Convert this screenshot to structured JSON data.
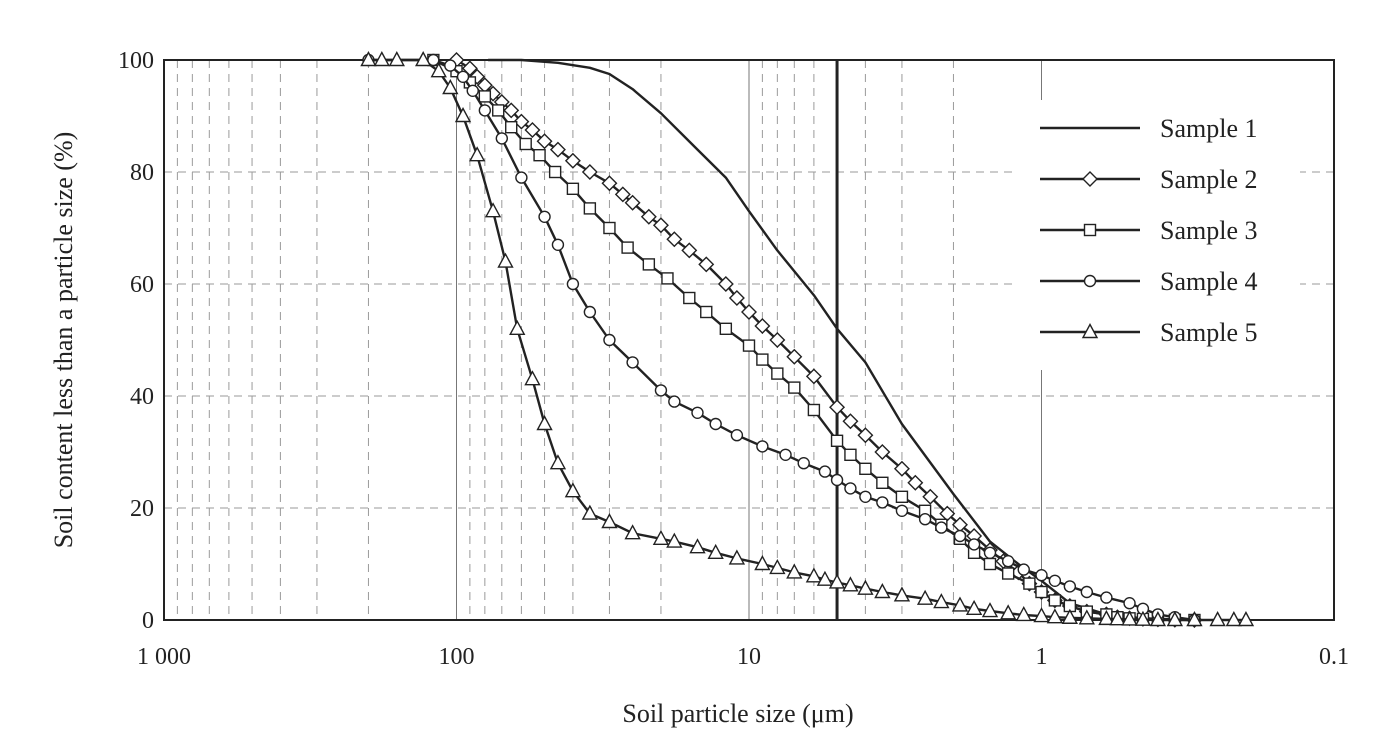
{
  "chart_data": {
    "type": "line",
    "title": "",
    "xlabel": "Soil particle size (μm)",
    "ylabel": "Soil content less than a particle size (%)",
    "x_scale": "log",
    "x_reversed": true,
    "xlim": [
      1000,
      0.1
    ],
    "ylim": [
      0,
      100
    ],
    "x_ticks": [
      {
        "value": 1000,
        "label": "1 000"
      },
      {
        "value": 100,
        "label": "100"
      },
      {
        "value": 10,
        "label": "10"
      },
      {
        "value": 1,
        "label": "1"
      },
      {
        "value": 0.1,
        "label": "0.1"
      }
    ],
    "y_ticks": [
      {
        "value": 0,
        "label": "0"
      },
      {
        "value": 20,
        "label": "20"
      },
      {
        "value": 40,
        "label": "40"
      },
      {
        "value": 60,
        "label": "60"
      },
      {
        "value": 80,
        "label": "80"
      },
      {
        "value": 100,
        "label": "100"
      }
    ],
    "grid": true,
    "legend_position": "top-right",
    "reference_line_x": 5,
    "series": [
      {
        "name": "Sample 1",
        "marker": "none",
        "points": [
          [
            78,
            100
          ],
          [
            60,
            100
          ],
          [
            45,
            99.5
          ],
          [
            35,
            98.6
          ],
          [
            30,
            97.5
          ],
          [
            25,
            94.8
          ],
          [
            20,
            90.5
          ],
          [
            15,
            84
          ],
          [
            12,
            79
          ],
          [
            10,
            73
          ],
          [
            8,
            66
          ],
          [
            6,
            58
          ],
          [
            5,
            52
          ],
          [
            4,
            46
          ],
          [
            3,
            35
          ],
          [
            2,
            22.5
          ],
          [
            1.5,
            14
          ],
          [
            1.2,
            10
          ],
          [
            1,
            7
          ],
          [
            0.8,
            3
          ],
          [
            0.6,
            1
          ],
          [
            0.45,
            0.3
          ],
          [
            0.3,
            0
          ]
        ]
      },
      {
        "name": "Sample 2",
        "marker": "diamond",
        "points": [
          [
            100,
            100
          ],
          [
            90,
            98.5
          ],
          [
            85,
            97
          ],
          [
            80,
            95.5
          ],
          [
            75,
            94
          ],
          [
            70,
            92.5
          ],
          [
            65,
            91
          ],
          [
            60,
            89
          ],
          [
            55,
            87.5
          ],
          [
            50,
            85.5
          ],
          [
            45,
            84
          ],
          [
            40,
            82
          ],
          [
            35,
            80
          ],
          [
            30,
            78
          ],
          [
            27,
            76
          ],
          [
            25,
            74.5
          ],
          [
            22,
            72
          ],
          [
            20,
            70.5
          ],
          [
            18,
            68
          ],
          [
            16,
            66
          ],
          [
            14,
            63.5
          ],
          [
            12,
            60
          ],
          [
            11,
            57.5
          ],
          [
            10,
            55
          ],
          [
            9,
            52.5
          ],
          [
            8,
            50
          ],
          [
            7,
            47
          ],
          [
            6,
            43.5
          ],
          [
            5,
            38
          ],
          [
            4.5,
            35.5
          ],
          [
            4,
            33
          ],
          [
            3.5,
            30
          ],
          [
            3,
            27
          ],
          [
            2.7,
            24.5
          ],
          [
            2.4,
            22
          ],
          [
            2.1,
            19
          ],
          [
            1.9,
            17
          ],
          [
            1.7,
            15
          ],
          [
            1.5,
            12.5
          ],
          [
            1.35,
            10.5
          ],
          [
            1.2,
            8.5
          ],
          [
            1.1,
            6.5
          ],
          [
            1,
            5
          ],
          [
            0.9,
            3.5
          ],
          [
            0.8,
            2.5
          ],
          [
            0.7,
            1.5
          ],
          [
            0.6,
            1
          ],
          [
            0.55,
            0.5
          ],
          [
            0.5,
            0.3
          ],
          [
            0.45,
            0.2
          ],
          [
            0.4,
            0.1
          ],
          [
            0.35,
            0.05
          ],
          [
            0.3,
            0
          ]
        ]
      },
      {
        "name": "Sample 3",
        "marker": "square",
        "points": [
          [
            120,
            100
          ],
          [
            100,
            98
          ],
          [
            90,
            96
          ],
          [
            80,
            93.5
          ],
          [
            72,
            91
          ],
          [
            65,
            88
          ],
          [
            58,
            85
          ],
          [
            52,
            83
          ],
          [
            46,
            80
          ],
          [
            40,
            77
          ],
          [
            35,
            73.5
          ],
          [
            30,
            70
          ],
          [
            26,
            66.5
          ],
          [
            22,
            63.5
          ],
          [
            19,
            61
          ],
          [
            16,
            57.5
          ],
          [
            14,
            55
          ],
          [
            12,
            52
          ],
          [
            10,
            49
          ],
          [
            9,
            46.5
          ],
          [
            8,
            44
          ],
          [
            7,
            41.5
          ],
          [
            6,
            37.5
          ],
          [
            5,
            32
          ],
          [
            4.5,
            29.5
          ],
          [
            4,
            27
          ],
          [
            3.5,
            24.5
          ],
          [
            3,
            22
          ],
          [
            2.5,
            19.5
          ],
          [
            2.2,
            17
          ],
          [
            1.9,
            14.5
          ],
          [
            1.7,
            12
          ],
          [
            1.5,
            10
          ],
          [
            1.3,
            8.3
          ],
          [
            1.1,
            6.5
          ],
          [
            1,
            5
          ],
          [
            0.9,
            3.5
          ],
          [
            0.8,
            2.5
          ],
          [
            0.7,
            1.5
          ],
          [
            0.6,
            1
          ],
          [
            0.55,
            0.5
          ],
          [
            0.5,
            0.3
          ],
          [
            0.45,
            0.2
          ],
          [
            0.4,
            0.1
          ],
          [
            0.35,
            0.05
          ],
          [
            0.3,
            0
          ]
        ]
      },
      {
        "name": "Sample 4",
        "marker": "circle",
        "points": [
          [
            200,
            100
          ],
          [
            120,
            100
          ],
          [
            105,
            99
          ],
          [
            95,
            97
          ],
          [
            88,
            94.5
          ],
          [
            80,
            91
          ],
          [
            70,
            86
          ],
          [
            60,
            79
          ],
          [
            50,
            72
          ],
          [
            45,
            67
          ],
          [
            40,
            60
          ],
          [
            35,
            55
          ],
          [
            30,
            50
          ],
          [
            25,
            46
          ],
          [
            20,
            41
          ],
          [
            18,
            39
          ],
          [
            15,
            37
          ],
          [
            13,
            35
          ],
          [
            11,
            33
          ],
          [
            9,
            31
          ],
          [
            7.5,
            29.5
          ],
          [
            6.5,
            28
          ],
          [
            5.5,
            26.5
          ],
          [
            5,
            25
          ],
          [
            4.5,
            23.5
          ],
          [
            4,
            22
          ],
          [
            3.5,
            21
          ],
          [
            3,
            19.5
          ],
          [
            2.5,
            18
          ],
          [
            2.2,
            16.5
          ],
          [
            1.9,
            15
          ],
          [
            1.7,
            13.5
          ],
          [
            1.5,
            12
          ],
          [
            1.3,
            10.5
          ],
          [
            1.15,
            9
          ],
          [
            1,
            8
          ],
          [
            0.9,
            7
          ],
          [
            0.8,
            6
          ],
          [
            0.7,
            5
          ],
          [
            0.6,
            4
          ],
          [
            0.5,
            3
          ],
          [
            0.45,
            2
          ],
          [
            0.4,
            1
          ],
          [
            0.35,
            0.5
          ],
          [
            0.3,
            0
          ]
        ]
      },
      {
        "name": "Sample 5",
        "marker": "triangle",
        "points": [
          [
            200,
            100
          ],
          [
            180,
            100
          ],
          [
            160,
            100
          ],
          [
            130,
            100
          ],
          [
            115,
            98
          ],
          [
            105,
            95
          ],
          [
            95,
            90
          ],
          [
            85,
            83
          ],
          [
            75,
            73
          ],
          [
            68,
            64
          ],
          [
            62,
            52
          ],
          [
            55,
            43
          ],
          [
            50,
            35
          ],
          [
            45,
            28
          ],
          [
            40,
            23
          ],
          [
            35,
            19
          ],
          [
            30,
            17.5
          ],
          [
            25,
            15.5
          ],
          [
            20,
            14.5
          ],
          [
            18,
            14
          ],
          [
            15,
            13
          ],
          [
            13,
            12
          ],
          [
            11,
            11
          ],
          [
            9,
            10
          ],
          [
            8,
            9.3
          ],
          [
            7,
            8.5
          ],
          [
            6,
            7.8
          ],
          [
            5.5,
            7.2
          ],
          [
            5,
            6.7
          ],
          [
            4.5,
            6.2
          ],
          [
            4,
            5.6
          ],
          [
            3.5,
            5
          ],
          [
            3,
            4.4
          ],
          [
            2.5,
            3.8
          ],
          [
            2.2,
            3.2
          ],
          [
            1.9,
            2.6
          ],
          [
            1.7,
            2
          ],
          [
            1.5,
            1.6
          ],
          [
            1.3,
            1.2
          ],
          [
            1.15,
            0.9
          ],
          [
            1,
            0.7
          ],
          [
            0.9,
            0.5
          ],
          [
            0.8,
            0.4
          ],
          [
            0.7,
            0.3
          ],
          [
            0.6,
            0.2
          ],
          [
            0.55,
            0.15
          ],
          [
            0.5,
            0.1
          ],
          [
            0.45,
            0.05
          ],
          [
            0.4,
            0
          ],
          [
            0.35,
            0
          ],
          [
            0.3,
            0
          ],
          [
            0.25,
            0
          ],
          [
            0.22,
            0
          ],
          [
            0.2,
            0
          ]
        ]
      }
    ]
  }
}
